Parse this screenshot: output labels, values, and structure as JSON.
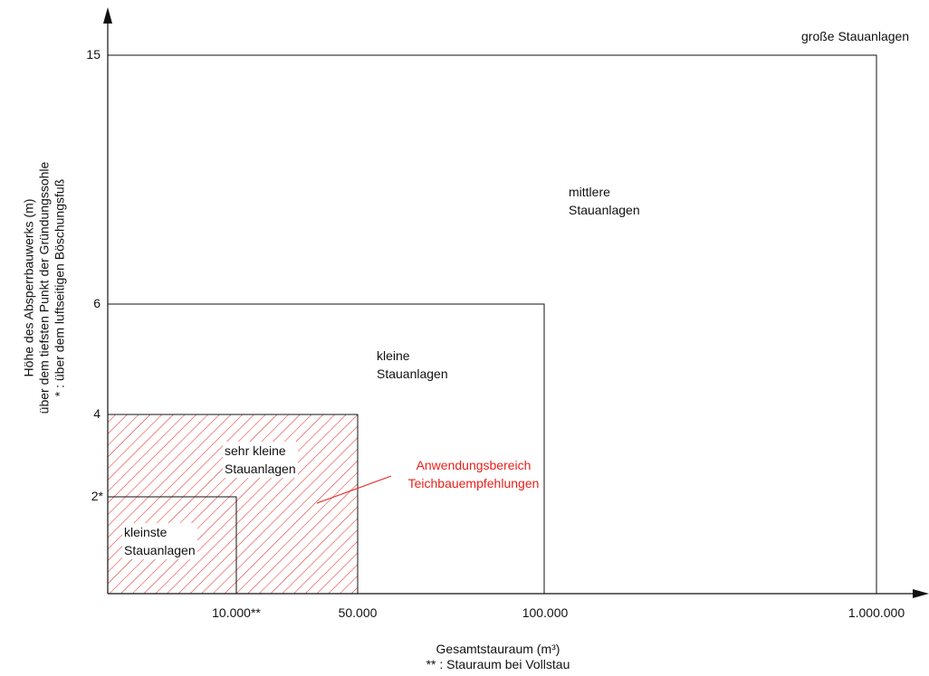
{
  "y_axis": {
    "title_line1": "Höhe des Absperrbauwerks (m)",
    "title_line2": "über dem tiefsten Punkt der Gründungssohle",
    "title_line3": "* : über dem luftseitigen Böschungsfuß",
    "ticks": [
      "2*",
      "4",
      "6",
      "15"
    ]
  },
  "x_axis": {
    "title_line1": "Gesamtstauraum (m³)",
    "title_line2": "** : Stauraum bei Vollstau",
    "ticks": [
      "10.000**",
      "50.000",
      "100.000",
      "1.000.000"
    ]
  },
  "regions": {
    "grosse": "große Stauanlagen",
    "mittlere_line1": "mittlere",
    "mittlere_line2": "Stauanlagen",
    "kleine_line1": "kleine",
    "kleine_line2": "Stauanlagen",
    "sehr_kleine_line1": "sehr kleine",
    "sehr_kleine_line2": "Stauanlagen",
    "kleinste_line1": "kleinste",
    "kleinste_line2": "Stauanlagen"
  },
  "annotation": {
    "line1": "Anwendungsbereich",
    "line2": "Teichbauempfehlungen",
    "color": "#e8201a"
  },
  "colors": {
    "lines": "#111111",
    "hatch": "#e8201a"
  }
}
